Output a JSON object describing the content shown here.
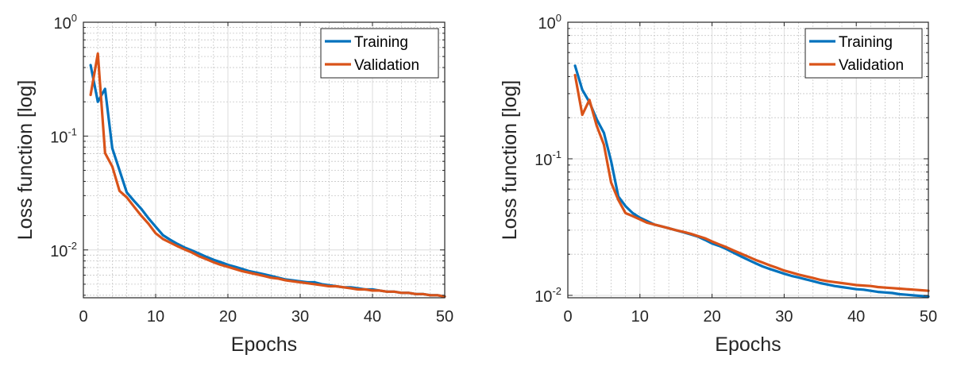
{
  "chart_data": [
    {
      "type": "line",
      "title": "",
      "xlabel": "Epochs",
      "ylabel": "Loss function [log]",
      "yscale": "log",
      "xlim": [
        0,
        50
      ],
      "ylim": [
        0.0038,
        1
      ],
      "xticks": [
        0,
        10,
        20,
        30,
        40,
        50
      ],
      "yticks": [
        {
          "base": "10",
          "exp": "0",
          "value": 1
        },
        {
          "base": "10",
          "exp": "-1",
          "value": 0.1
        },
        {
          "base": "10",
          "exp": "-2",
          "value": 0.01
        }
      ],
      "grid": "major+minor",
      "legend": "top-right",
      "series": [
        {
          "name": "Training",
          "color": "#0072BD",
          "x": [
            1,
            2,
            3,
            4,
            5,
            6,
            7,
            8,
            9,
            10,
            11,
            12,
            13,
            14,
            15,
            16,
            17,
            18,
            19,
            20,
            21,
            22,
            23,
            24,
            25,
            26,
            27,
            28,
            29,
            30,
            31,
            32,
            33,
            34,
            35,
            36,
            37,
            38,
            39,
            40,
            41,
            42,
            43,
            44,
            45,
            46,
            47,
            48,
            49,
            50
          ],
          "y": [
            0.42,
            0.2,
            0.26,
            0.078,
            0.05,
            0.032,
            0.027,
            0.023,
            0.019,
            0.016,
            0.0135,
            0.0123,
            0.0113,
            0.0105,
            0.0099,
            0.0093,
            0.0087,
            0.0082,
            0.0078,
            0.0074,
            0.0071,
            0.0068,
            0.0065,
            0.0063,
            0.0061,
            0.0059,
            0.0057,
            0.0055,
            0.0054,
            0.0053,
            0.0052,
            0.0052,
            0.005,
            0.0049,
            0.0048,
            0.0047,
            0.0047,
            0.0046,
            0.0045,
            0.0045,
            0.0044,
            0.0043,
            0.0043,
            0.0042,
            0.0042,
            0.0041,
            0.0041,
            0.004,
            0.004,
            0.0039
          ]
        },
        {
          "name": "Validation",
          "color": "#D95319",
          "x": [
            1,
            2,
            3,
            4,
            5,
            6,
            7,
            8,
            9,
            10,
            11,
            12,
            13,
            14,
            15,
            16,
            17,
            18,
            19,
            20,
            21,
            22,
            23,
            24,
            25,
            26,
            27,
            28,
            29,
            30,
            31,
            32,
            33,
            34,
            35,
            36,
            37,
            38,
            39,
            40,
            41,
            42,
            43,
            44,
            45,
            46,
            47,
            48,
            49,
            50
          ],
          "y": [
            0.23,
            0.53,
            0.071,
            0.054,
            0.033,
            0.029,
            0.024,
            0.02,
            0.017,
            0.014,
            0.0125,
            0.0116,
            0.0108,
            0.0101,
            0.0095,
            0.0088,
            0.0083,
            0.0078,
            0.0074,
            0.0071,
            0.0068,
            0.0065,
            0.0063,
            0.0061,
            0.0059,
            0.0057,
            0.0056,
            0.0054,
            0.0053,
            0.0052,
            0.0051,
            0.005,
            0.0049,
            0.0048,
            0.0048,
            0.0047,
            0.0046,
            0.0045,
            0.0045,
            0.0044,
            0.0044,
            0.0043,
            0.0043,
            0.0042,
            0.0042,
            0.0041,
            0.0041,
            0.004,
            0.004,
            0.0039
          ]
        }
      ]
    },
    {
      "type": "line",
      "title": "",
      "xlabel": "Epochs",
      "ylabel": "Loss function [log]",
      "yscale": "log",
      "xlim": [
        0,
        50
      ],
      "ylim": [
        0.0096,
        1
      ],
      "xticks": [
        0,
        10,
        20,
        30,
        40,
        50
      ],
      "yticks": [
        {
          "base": "10",
          "exp": "0",
          "value": 1
        },
        {
          "base": "10",
          "exp": "-1",
          "value": 0.1
        },
        {
          "base": "10",
          "exp": "-2",
          "value": 0.01
        }
      ],
      "grid": "major+minor",
      "legend": "top-right",
      "series": [
        {
          "name": "Training",
          "color": "#0072BD",
          "x": [
            1,
            2,
            3,
            4,
            5,
            6,
            7,
            8,
            9,
            10,
            11,
            12,
            13,
            14,
            15,
            16,
            17,
            18,
            19,
            20,
            21,
            22,
            23,
            24,
            25,
            26,
            27,
            28,
            29,
            30,
            31,
            32,
            33,
            34,
            35,
            36,
            37,
            38,
            39,
            40,
            41,
            42,
            43,
            44,
            45,
            46,
            47,
            48,
            49,
            50
          ],
          "y": [
            0.48,
            0.32,
            0.26,
            0.195,
            0.155,
            0.096,
            0.053,
            0.045,
            0.04,
            0.037,
            0.035,
            0.033,
            0.032,
            0.031,
            0.03,
            0.029,
            0.028,
            0.027,
            0.0255,
            0.024,
            0.023,
            0.0218,
            0.0205,
            0.0193,
            0.0182,
            0.0172,
            0.0163,
            0.0156,
            0.015,
            0.0144,
            0.0139,
            0.0135,
            0.0131,
            0.0127,
            0.0123,
            0.012,
            0.0117,
            0.0115,
            0.0113,
            0.0111,
            0.011,
            0.0108,
            0.0106,
            0.0105,
            0.0104,
            0.0102,
            0.0101,
            0.01,
            0.0099,
            0.0098
          ]
        },
        {
          "name": "Validation",
          "color": "#D95319",
          "x": [
            1,
            2,
            3,
            4,
            5,
            6,
            7,
            8,
            9,
            10,
            11,
            12,
            13,
            14,
            15,
            16,
            17,
            18,
            19,
            20,
            21,
            22,
            23,
            24,
            25,
            26,
            27,
            28,
            29,
            30,
            31,
            32,
            33,
            34,
            35,
            36,
            37,
            38,
            39,
            40,
            41,
            42,
            43,
            44,
            45,
            46,
            47,
            48,
            49,
            50
          ],
          "y": [
            0.41,
            0.21,
            0.27,
            0.175,
            0.127,
            0.067,
            0.05,
            0.04,
            0.038,
            0.036,
            0.034,
            0.033,
            0.032,
            0.031,
            0.03,
            0.0292,
            0.0283,
            0.0272,
            0.0262,
            0.0248,
            0.0236,
            0.0225,
            0.0213,
            0.0202,
            0.0192,
            0.0182,
            0.0174,
            0.0166,
            0.0159,
            0.0152,
            0.0147,
            0.0142,
            0.0138,
            0.0134,
            0.013,
            0.0127,
            0.0125,
            0.0123,
            0.0121,
            0.0119,
            0.0118,
            0.0117,
            0.0115,
            0.0114,
            0.0113,
            0.0112,
            0.0111,
            0.011,
            0.0109,
            0.0108
          ]
        }
      ]
    }
  ]
}
